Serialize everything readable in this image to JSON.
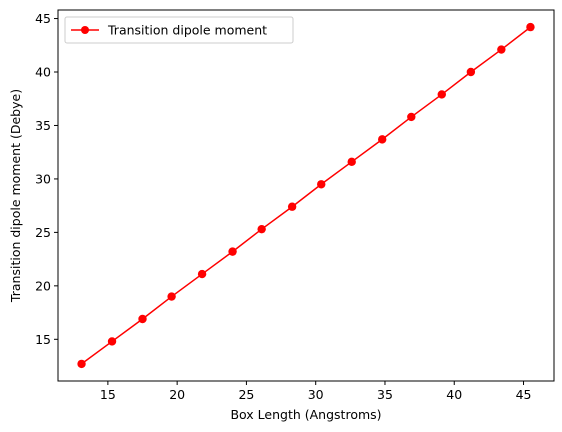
{
  "chart_data": {
    "type": "line",
    "xlabel": "Box Length (Angstroms)",
    "ylabel": "Transition dipole moment (Debye)",
    "xlim": [
      11.4,
      47.2
    ],
    "ylim": [
      11.1,
      45.8
    ],
    "xticks": [
      15,
      20,
      25,
      30,
      35,
      40,
      45
    ],
    "yticks": [
      15,
      20,
      25,
      30,
      35,
      40,
      45
    ],
    "grid": false,
    "legend_position": "top-left",
    "series": [
      {
        "name": "Transition dipole moment",
        "color": "#ff0000",
        "marker": "circle",
        "x": [
          13.1,
          15.3,
          17.5,
          19.6,
          21.8,
          24.0,
          26.1,
          28.3,
          30.4,
          32.6,
          34.8,
          36.9,
          39.1,
          41.2,
          43.4,
          45.5
        ],
        "y": [
          12.7,
          14.8,
          16.9,
          19.0,
          21.1,
          23.2,
          25.3,
          27.4,
          29.5,
          31.6,
          33.7,
          35.8,
          37.9,
          40.0,
          42.1,
          44.2
        ]
      }
    ]
  }
}
